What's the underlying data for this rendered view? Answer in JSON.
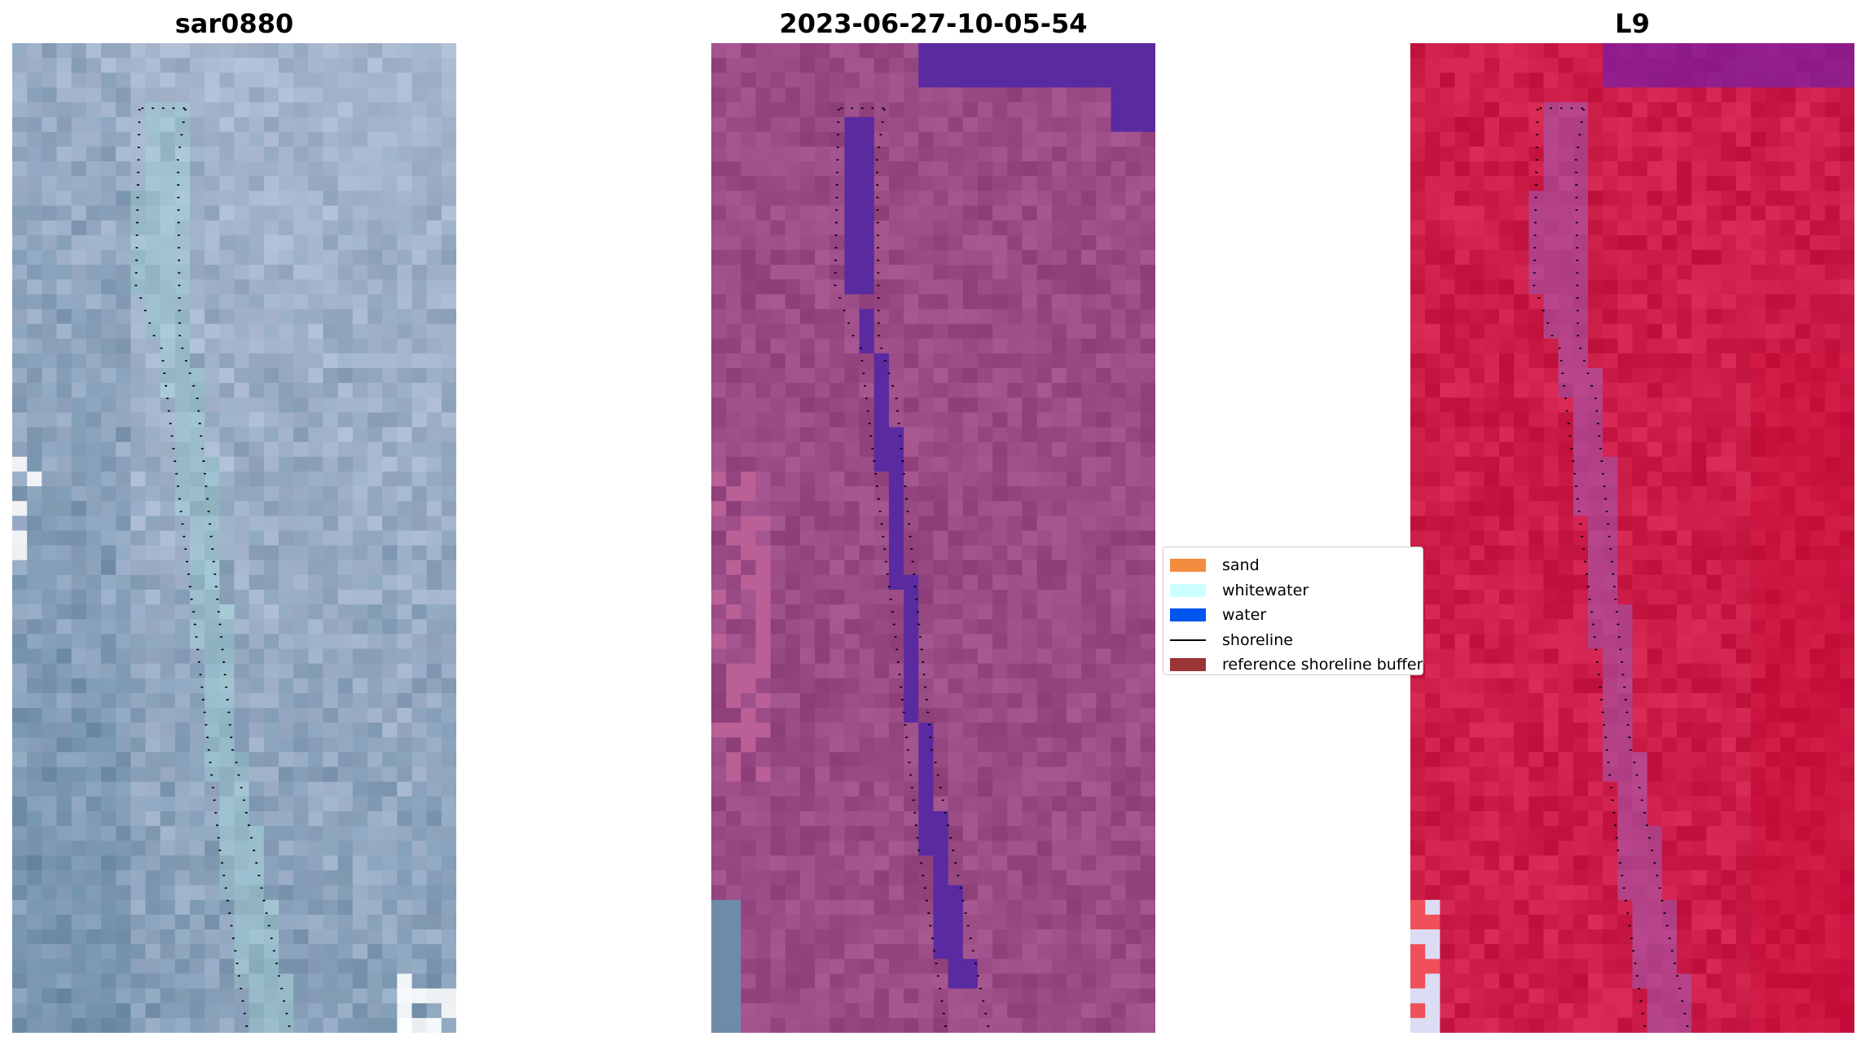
{
  "panels": [
    {
      "title": "sar0880",
      "style": "rgb"
    },
    {
      "title": "2023-06-27-10-05-54",
      "style": "classified"
    },
    {
      "title": "L9",
      "style": "nir"
    }
  ],
  "legend": {
    "items": [
      {
        "label": "sand",
        "color": "#f28c3f",
        "kind": "patch"
      },
      {
        "label": "whitewater",
        "color": "#ccffff",
        "kind": "patch"
      },
      {
        "label": "water",
        "color": "#0055ee",
        "kind": "patch"
      },
      {
        "label": "shoreline",
        "color": "#000000",
        "kind": "line"
      },
      {
        "label": "reference shoreline buffer",
        "color": "#9b3434",
        "kind": "patch"
      }
    ]
  },
  "colors": {
    "rgb_base": "#a9b8cf",
    "rgb_dark": "#6f8ea8",
    "rgb_channel": "#9cc9cf",
    "classified_base": "#9a4a84",
    "classified_water": "#5a2aa0",
    "nir_base": "#cc1c48",
    "nir_channel": "#a45ab0",
    "shoreline": "#000000"
  }
}
